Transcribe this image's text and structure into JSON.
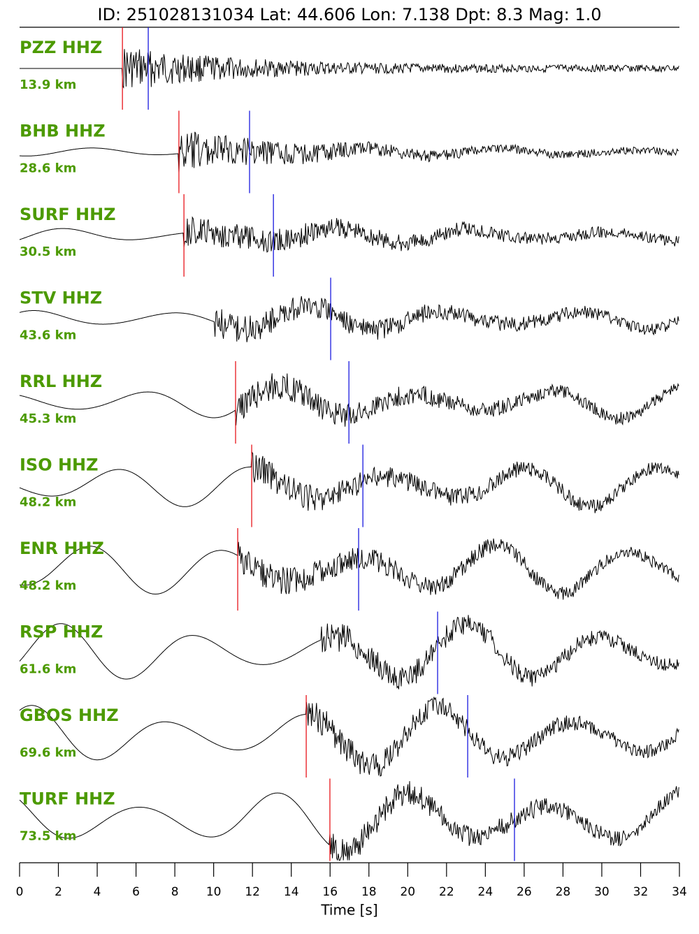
{
  "chart_data": {
    "type": "seismogram",
    "title": "ID: 251028131034 Lat:  44.606 Lon:   7.138 Dpt:     8.3 Mag:   1.0",
    "x_label": "Time [s]",
    "xlim": [
      0,
      34
    ],
    "xticks": [
      0,
      2,
      4,
      6,
      8,
      10,
      12,
      14,
      16,
      18,
      20,
      22,
      24,
      26,
      28,
      30,
      32,
      34
    ],
    "p_color": "#e8151b",
    "s_color": "#1a1adf",
    "label_color": "#4c9a00",
    "traces": [
      {
        "station": "PZZ HHZ",
        "distance": "13.9 km",
        "p": 5.3,
        "s": 6.63
      },
      {
        "station": "BHB HHZ",
        "distance": "28.6 km",
        "p": 8.21,
        "s": 11.85
      },
      {
        "station": "SURF HHZ",
        "distance": "30.5 km",
        "p": 8.47,
        "s": 13.08
      },
      {
        "station": "STV HHZ",
        "distance": "43.6 km",
        "p": null,
        "s": 16.03
      },
      {
        "station": "RRL HHZ",
        "distance": "45.3 km",
        "p": 11.13,
        "s": 16.97
      },
      {
        "station": "ISO HHZ",
        "distance": "48.2 km",
        "p": 11.96,
        "s": 17.69
      },
      {
        "station": "ENR HHZ",
        "distance": "48.2 km",
        "p": 11.24,
        "s": 17.47
      },
      {
        "station": "RSP HHZ",
        "distance": "61.6 km",
        "p": null,
        "s": 21.54
      },
      {
        "station": "GBOS HHZ",
        "distance": "69.6 km",
        "p": 14.77,
        "s": 23.09
      },
      {
        "station": "TURF HHZ",
        "distance": "73.5 km",
        "p": 15.99,
        "s": 25.5
      }
    ]
  }
}
